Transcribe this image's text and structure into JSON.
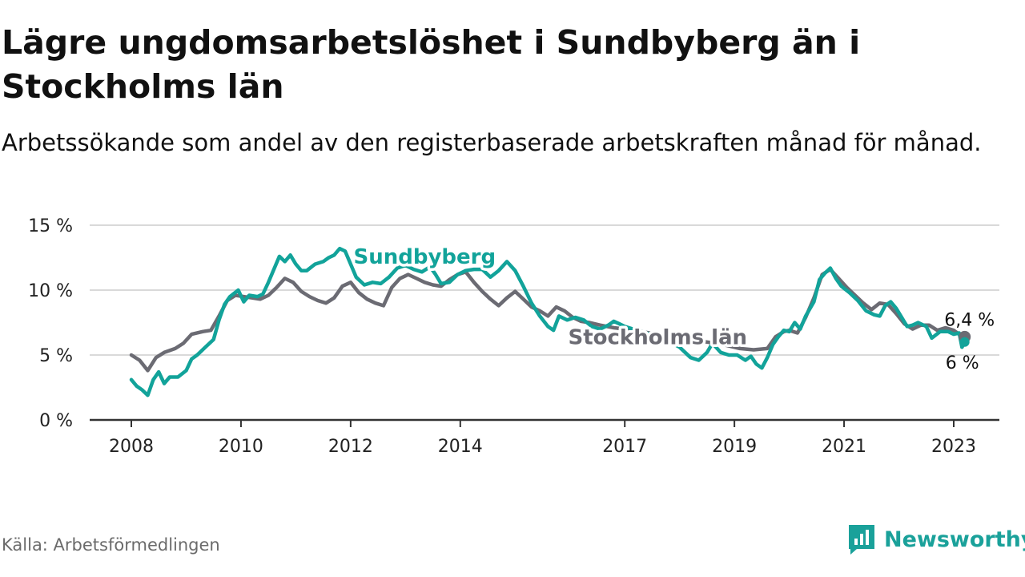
{
  "title": "Lägre ungdomsarbetslöshet i Sundbyberg än i Stockholms län",
  "subtitle": "Arbetssökande som andel av den registerbaserade arbetskraften månad för månad.",
  "source": "Källa: Arbetsförmedlingen",
  "brand": {
    "name": "Newsworthy",
    "icon": "chart-bubble-icon"
  },
  "colors": {
    "sundbyberg": "#12a39a",
    "stockholm": "#6b6b73",
    "grid": "#d9d9d9",
    "axis": "#333333"
  },
  "chart_data": {
    "type": "line",
    "title": "Lägre ungdomsarbetslöshet i Sundbyberg än i Stockholms län",
    "xlabel": "",
    "ylabel": "",
    "ylim": [
      0,
      15
    ],
    "xlim": [
      2007.9,
      2024.0
    ],
    "yticks": [
      {
        "value": 0,
        "label": "0 %"
      },
      {
        "value": 5,
        "label": "5 %"
      },
      {
        "value": 10,
        "label": "10 %"
      },
      {
        "value": 15,
        "label": "15 %"
      }
    ],
    "xticks": [
      {
        "value": 2008.0,
        "label": "2008"
      },
      {
        "value": 2010.0,
        "label": "2010"
      },
      {
        "value": 2012.0,
        "label": "2012"
      },
      {
        "value": 2014.0,
        "label": "2014"
      },
      {
        "value": 2017.0,
        "label": "2017"
      },
      {
        "value": 2019.0,
        "label": "2019"
      },
      {
        "value": 2021.0,
        "label": "2021"
      },
      {
        "value": 2023.0,
        "label": "2023"
      }
    ],
    "grid": true,
    "series": [
      {
        "name": "Stockholms län",
        "label": "Stockholms län",
        "end_label": "6,4 %",
        "points": [
          [
            2008.0,
            5.0
          ],
          [
            2008.15,
            4.6
          ],
          [
            2008.3,
            3.8
          ],
          [
            2008.45,
            4.8
          ],
          [
            2008.6,
            5.2
          ],
          [
            2008.8,
            5.5
          ],
          [
            2008.95,
            5.9
          ],
          [
            2009.1,
            6.6
          ],
          [
            2009.3,
            6.8
          ],
          [
            2009.45,
            6.9
          ],
          [
            2009.6,
            8.0
          ],
          [
            2009.75,
            9.2
          ],
          [
            2009.9,
            9.6
          ],
          [
            2010.05,
            9.5
          ],
          [
            2010.2,
            9.4
          ],
          [
            2010.35,
            9.3
          ],
          [
            2010.5,
            9.6
          ],
          [
            2010.65,
            10.2
          ],
          [
            2010.8,
            10.9
          ],
          [
            2010.95,
            10.6
          ],
          [
            2011.1,
            9.9
          ],
          [
            2011.25,
            9.5
          ],
          [
            2011.4,
            9.2
          ],
          [
            2011.55,
            9.0
          ],
          [
            2011.7,
            9.4
          ],
          [
            2011.85,
            10.3
          ],
          [
            2012.0,
            10.6
          ],
          [
            2012.15,
            9.8
          ],
          [
            2012.3,
            9.3
          ],
          [
            2012.45,
            9.0
          ],
          [
            2012.6,
            8.8
          ],
          [
            2012.75,
            10.2
          ],
          [
            2012.9,
            10.9
          ],
          [
            2013.05,
            11.2
          ],
          [
            2013.2,
            10.9
          ],
          [
            2013.35,
            10.6
          ],
          [
            2013.5,
            10.4
          ],
          [
            2013.65,
            10.3
          ],
          [
            2013.8,
            10.8
          ],
          [
            2013.95,
            11.2
          ],
          [
            2014.1,
            11.4
          ],
          [
            2014.25,
            10.6
          ],
          [
            2014.4,
            9.9
          ],
          [
            2014.55,
            9.3
          ],
          [
            2014.7,
            8.8
          ],
          [
            2014.85,
            9.4
          ],
          [
            2015.0,
            9.9
          ],
          [
            2015.15,
            9.3
          ],
          [
            2015.3,
            8.7
          ],
          [
            2015.45,
            8.4
          ],
          [
            2015.6,
            8.0
          ],
          [
            2015.75,
            8.7
          ],
          [
            2015.9,
            8.4
          ],
          [
            2016.05,
            7.9
          ],
          [
            2016.2,
            7.6
          ],
          [
            2016.35,
            7.5
          ],
          [
            2016.55,
            7.3
          ],
          [
            2016.8,
            7.1
          ],
          [
            2017.0,
            7.0
          ],
          [
            2017.3,
            6.8
          ],
          [
            2017.6,
            6.6
          ],
          [
            2017.9,
            6.4
          ],
          [
            2018.2,
            6.2
          ],
          [
            2018.5,
            6.0
          ],
          [
            2018.8,
            5.8
          ],
          [
            2019.1,
            5.5
          ],
          [
            2019.35,
            5.4
          ],
          [
            2019.6,
            5.5
          ],
          [
            2019.75,
            6.4
          ],
          [
            2019.9,
            6.8
          ],
          [
            2020.0,
            6.9
          ],
          [
            2020.15,
            6.7
          ],
          [
            2020.3,
            7.9
          ],
          [
            2020.45,
            9.4
          ],
          [
            2020.6,
            11.2
          ],
          [
            2020.75,
            11.6
          ],
          [
            2020.9,
            10.9
          ],
          [
            2021.05,
            10.2
          ],
          [
            2021.2,
            9.6
          ],
          [
            2021.35,
            9.0
          ],
          [
            2021.5,
            8.5
          ],
          [
            2021.65,
            9.0
          ],
          [
            2021.8,
            8.9
          ],
          [
            2021.95,
            8.2
          ],
          [
            2022.1,
            7.4
          ],
          [
            2022.25,
            7.0
          ],
          [
            2022.4,
            7.3
          ],
          [
            2022.55,
            7.3
          ],
          [
            2022.7,
            6.9
          ],
          [
            2022.85,
            7.1
          ],
          [
            2023.0,
            6.9
          ],
          [
            2023.1,
            6.6
          ],
          [
            2023.2,
            6.4
          ]
        ]
      },
      {
        "name": "Sundbyberg",
        "label": "Sundbyberg",
        "end_label": "6 %",
        "points": [
          [
            2008.0,
            3.1
          ],
          [
            2008.1,
            2.6
          ],
          [
            2008.2,
            2.3
          ],
          [
            2008.3,
            1.9
          ],
          [
            2008.4,
            3.1
          ],
          [
            2008.5,
            3.7
          ],
          [
            2008.6,
            2.8
          ],
          [
            2008.7,
            3.3
          ],
          [
            2008.85,
            3.3
          ],
          [
            2009.0,
            3.8
          ],
          [
            2009.1,
            4.7
          ],
          [
            2009.2,
            5.0
          ],
          [
            2009.35,
            5.6
          ],
          [
            2009.5,
            6.2
          ],
          [
            2009.6,
            7.7
          ],
          [
            2009.7,
            8.9
          ],
          [
            2009.8,
            9.5
          ],
          [
            2009.95,
            10.0
          ],
          [
            2010.05,
            9.1
          ],
          [
            2010.15,
            9.6
          ],
          [
            2010.3,
            9.5
          ],
          [
            2010.4,
            9.7
          ],
          [
            2010.5,
            10.6
          ],
          [
            2010.6,
            11.6
          ],
          [
            2010.7,
            12.6
          ],
          [
            2010.8,
            12.2
          ],
          [
            2010.9,
            12.7
          ],
          [
            2011.0,
            12.0
          ],
          [
            2011.1,
            11.5
          ],
          [
            2011.2,
            11.5
          ],
          [
            2011.35,
            12.0
          ],
          [
            2011.5,
            12.2
          ],
          [
            2011.6,
            12.5
          ],
          [
            2011.7,
            12.7
          ],
          [
            2011.8,
            13.2
          ],
          [
            2011.9,
            13.0
          ],
          [
            2012.0,
            12.0
          ],
          [
            2012.1,
            11.0
          ],
          [
            2012.25,
            10.4
          ],
          [
            2012.4,
            10.6
          ],
          [
            2012.55,
            10.5
          ],
          [
            2012.7,
            11.0
          ],
          [
            2012.85,
            11.7
          ],
          [
            2013.0,
            11.9
          ],
          [
            2013.15,
            11.6
          ],
          [
            2013.3,
            11.4
          ],
          [
            2013.45,
            11.8
          ],
          [
            2013.55,
            11.2
          ],
          [
            2013.65,
            10.5
          ],
          [
            2013.8,
            10.6
          ],
          [
            2013.95,
            11.2
          ],
          [
            2014.1,
            11.5
          ],
          [
            2014.25,
            11.6
          ],
          [
            2014.4,
            11.6
          ],
          [
            2014.55,
            11.0
          ],
          [
            2014.7,
            11.5
          ],
          [
            2014.85,
            12.2
          ],
          [
            2015.0,
            11.5
          ],
          [
            2015.15,
            10.3
          ],
          [
            2015.3,
            9.0
          ],
          [
            2015.45,
            8.0
          ],
          [
            2015.6,
            7.2
          ],
          [
            2015.7,
            6.9
          ],
          [
            2015.8,
            8.0
          ],
          [
            2015.95,
            7.7
          ],
          [
            2016.1,
            7.9
          ],
          [
            2016.25,
            7.7
          ],
          [
            2016.4,
            7.2
          ],
          [
            2016.55,
            7.0
          ],
          [
            2016.7,
            7.3
          ],
          [
            2016.8,
            7.6
          ],
          [
            2016.9,
            7.4
          ],
          [
            2017.0,
            7.2
          ],
          [
            2017.3,
            6.8
          ],
          [
            2017.7,
            6.3
          ],
          [
            2018.0,
            5.6
          ],
          [
            2018.2,
            4.8
          ],
          [
            2018.35,
            4.6
          ],
          [
            2018.5,
            5.2
          ],
          [
            2018.6,
            5.9
          ],
          [
            2018.75,
            5.2
          ],
          [
            2018.9,
            5.0
          ],
          [
            2019.05,
            5.0
          ],
          [
            2019.2,
            4.6
          ],
          [
            2019.3,
            4.9
          ],
          [
            2019.4,
            4.3
          ],
          [
            2019.5,
            4.0
          ],
          [
            2019.6,
            4.8
          ],
          [
            2019.7,
            5.8
          ],
          [
            2019.8,
            6.4
          ],
          [
            2019.9,
            6.9
          ],
          [
            2020.0,
            6.8
          ],
          [
            2020.1,
            7.5
          ],
          [
            2020.2,
            7.0
          ],
          [
            2020.3,
            8.0
          ],
          [
            2020.45,
            9.1
          ],
          [
            2020.55,
            10.8
          ],
          [
            2020.65,
            11.3
          ],
          [
            2020.75,
            11.7
          ],
          [
            2020.85,
            10.9
          ],
          [
            2020.95,
            10.3
          ],
          [
            2021.1,
            9.8
          ],
          [
            2021.25,
            9.2
          ],
          [
            2021.4,
            8.4
          ],
          [
            2021.55,
            8.1
          ],
          [
            2021.65,
            8.0
          ],
          [
            2021.75,
            8.8
          ],
          [
            2021.85,
            9.1
          ],
          [
            2021.95,
            8.6
          ],
          [
            2022.05,
            7.9
          ],
          [
            2022.15,
            7.2
          ],
          [
            2022.25,
            7.3
          ],
          [
            2022.35,
            7.5
          ],
          [
            2022.5,
            7.2
          ],
          [
            2022.6,
            6.3
          ],
          [
            2022.75,
            6.8
          ],
          [
            2022.9,
            6.8
          ],
          [
            2023.0,
            6.6
          ],
          [
            2023.1,
            6.7
          ],
          [
            2023.15,
            5.6
          ],
          [
            2023.2,
            6.0
          ]
        ]
      }
    ],
    "annotations": [
      {
        "text": "Sundbyberg",
        "series": "Sundbyberg",
        "x": 2013.35,
        "y": 12.6
      },
      {
        "text": "Stockholms län",
        "series": "Stockholms län",
        "x": 2017.6,
        "y": 6.4
      }
    ]
  }
}
